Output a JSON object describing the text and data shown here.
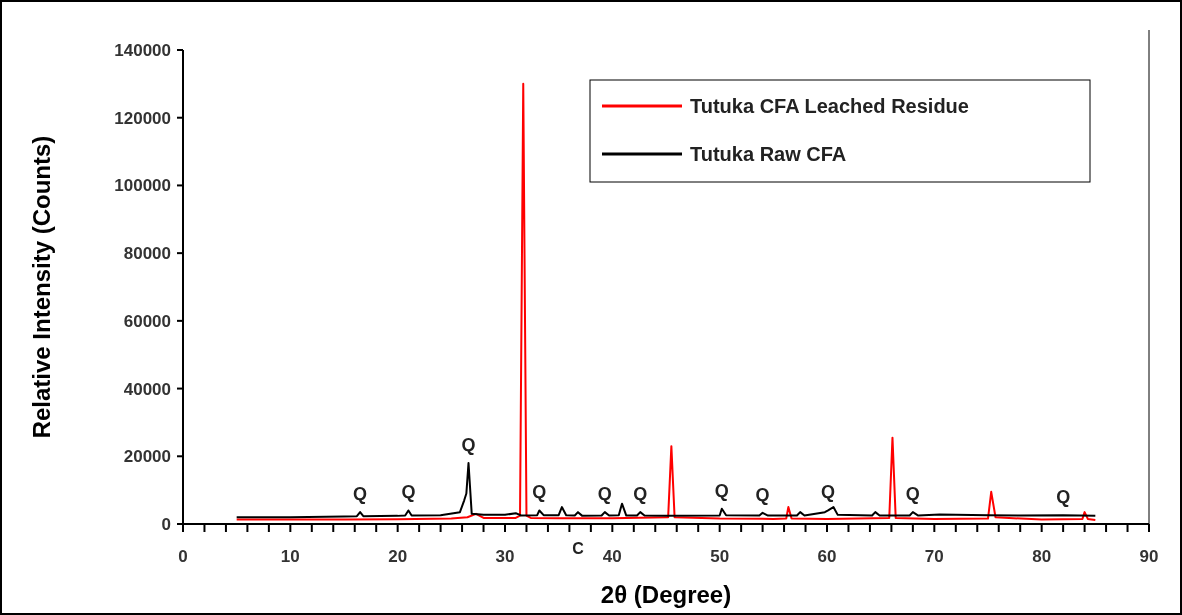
{
  "chart_data": {
    "type": "line",
    "xlabel": "2θ (Degree)",
    "ylabel": "Relative Intensity (Counts)",
    "xlim": [
      0,
      90
    ],
    "ylim": [
      0,
      140000
    ],
    "xticks": [
      0,
      {
        "value": 2,
        "label": null
      },
      {
        "value": 4,
        "label": null
      },
      {
        "value": 6,
        "label": null
      },
      {
        "value": 8,
        "label": null
      },
      10,
      {
        "value": 12,
        "label": null
      },
      {
        "value": 14,
        "label": null
      },
      {
        "value": 16,
        "label": null
      },
      {
        "value": 18,
        "label": null
      },
      20,
      {
        "value": 22,
        "label": null
      },
      {
        "value": 24,
        "label": null
      },
      {
        "value": 26,
        "label": null
      },
      {
        "value": 28,
        "label": null
      },
      30,
      {
        "value": 32,
        "label": null
      },
      {
        "value": 34,
        "label": null
      },
      {
        "value": 36,
        "label": null
      },
      {
        "value": 38,
        "label": null
      },
      40,
      {
        "value": 42,
        "label": null
      },
      {
        "value": 44,
        "label": null
      },
      {
        "value": 46,
        "label": null
      },
      {
        "value": 48,
        "label": null
      },
      50,
      {
        "value": 52,
        "label": null
      },
      {
        "value": 54,
        "label": null
      },
      {
        "value": 56,
        "label": null
      },
      {
        "value": 58,
        "label": null
      },
      60,
      {
        "value": 62,
        "label": null
      },
      {
        "value": 64,
        "label": null
      },
      {
        "value": 66,
        "label": null
      },
      {
        "value": 68,
        "label": null
      },
      70,
      {
        "value": 72,
        "label": null
      },
      {
        "value": 74,
        "label": null
      },
      {
        "value": 76,
        "label": null
      },
      {
        "value": 78,
        "label": null
      },
      80,
      {
        "value": 82,
        "label": null
      },
      {
        "value": 84,
        "label": null
      },
      {
        "value": 86,
        "label": null
      },
      {
        "value": 88,
        "label": null
      },
      90
    ],
    "yticks": [
      0,
      20000,
      40000,
      60000,
      80000,
      100000,
      120000,
      140000
    ],
    "legend": "top right",
    "grid": false,
    "line_style": "solid",
    "marker": "none",
    "series": [
      {
        "name": "Tutuka CFA Leached Residue",
        "color": "#ff0000",
        "x": [
          5,
          15,
          20,
          25,
          26.5,
          27.3,
          28,
          31,
          31.4,
          31.7,
          32.0,
          32.4,
          35,
          40,
          45.2,
          45.5,
          45.8,
          50,
          55,
          56.2,
          56.4,
          56.7,
          60,
          65.8,
          66.1,
          66.4,
          70,
          75,
          75.3,
          75.7,
          80,
          83.8,
          84,
          84.3,
          85
        ],
        "values": [
          1300,
          1300,
          1400,
          1600,
          2000,
          3000,
          1800,
          1800,
          2500,
          130000,
          2500,
          1800,
          1700,
          1700,
          2000,
          23000,
          2000,
          1600,
          1500,
          1600,
          5000,
          1600,
          1500,
          1800,
          25500,
          1800,
          1500,
          1600,
          9500,
          2000,
          1300,
          1500,
          3500,
          1500,
          1200
        ]
      },
      {
        "name": "Tutuka Raw CFA",
        "color": "#000000",
        "x": [
          5,
          10,
          15,
          16.2,
          16.5,
          16.8,
          20,
          20.7,
          21,
          21.3,
          24,
          25.8,
          26.2,
          26.4,
          26.6,
          26.9,
          28,
          30,
          31,
          31.5,
          33,
          33.2,
          33.6,
          35,
          35.3,
          35.7,
          36.5,
          36.8,
          37.2,
          39,
          39.3,
          39.7,
          40.6,
          40.9,
          41.3,
          42.3,
          42.6,
          43,
          45,
          50,
          50.2,
          50.6,
          53.7,
          54,
          54.5,
          57.2,
          57.5,
          57.9,
          59.8,
          60.1,
          60.6,
          61,
          64.2,
          64.5,
          64.9,
          67.7,
          68,
          68.5,
          70.5,
          75,
          78,
          82,
          85
        ],
        "values": [
          2000,
          2000,
          2200,
          2300,
          3500,
          2300,
          2400,
          2500,
          4000,
          2500,
          2600,
          3500,
          7000,
          9000,
          18000,
          3000,
          2700,
          2700,
          3200,
          2500,
          2600,
          4000,
          2600,
          2600,
          5000,
          2600,
          2500,
          3500,
          2400,
          2500,
          3500,
          2500,
          2600,
          6000,
          2500,
          2500,
          3500,
          2500,
          2400,
          2500,
          4500,
          2600,
          2500,
          3300,
          2500,
          2500,
          3500,
          2500,
          3500,
          4000,
          5000,
          2700,
          2500,
          3500,
          2500,
          2500,
          3500,
          2500,
          2800,
          2600,
          2500,
          2600,
          2400
        ]
      }
    ],
    "annotations": [
      {
        "text": "Q",
        "x": 16.5,
        "y": 3500
      },
      {
        "text": "Q",
        "x": 21,
        "y": 4000
      },
      {
        "text": "Q",
        "x": 26.6,
        "y": 18000
      },
      {
        "text": "Q",
        "x": 33.2,
        "y": 4000
      },
      {
        "text": "Q",
        "x": 39.3,
        "y": 3500
      },
      {
        "text": "Q",
        "x": 42.6,
        "y": 3500
      },
      {
        "text": "Q",
        "x": 50.2,
        "y": 4500
      },
      {
        "text": "Q",
        "x": 54,
        "y": 3300
      },
      {
        "text": "Q",
        "x": 60.1,
        "y": 4000
      },
      {
        "text": "Q",
        "x": 68,
        "y": 3500
      },
      {
        "text": "Q",
        "x": 82,
        "y": 2600
      },
      "C"
    ]
  }
}
